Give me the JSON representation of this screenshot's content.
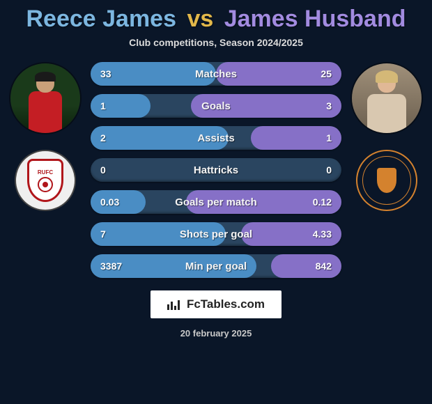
{
  "title": {
    "player1": "Reece James",
    "vs": "vs",
    "player2": "James Husband"
  },
  "subtitle": "Club competitions, Season 2024/2025",
  "colors": {
    "p1_title": "#7cb6e0",
    "vs_title": "#e2b84a",
    "p2_title": "#a28be0",
    "p1_bar": "#4a8dc4",
    "p2_bar": "#8670c7",
    "bar_bg": "#2a4560",
    "page_bg": "#0a1628"
  },
  "stats": [
    {
      "label": "Matches",
      "v1": "33",
      "v2": "25",
      "w1": 50,
      "w2": 50
    },
    {
      "label": "Goals",
      "v1": "1",
      "v2": "3",
      "w1": 24,
      "w2": 60
    },
    {
      "label": "Assists",
      "v1": "2",
      "v2": "1",
      "w1": 55,
      "w2": 36
    },
    {
      "label": "Hattricks",
      "v1": "0",
      "v2": "0",
      "w1": 0,
      "w2": 0
    },
    {
      "label": "Goals per match",
      "v1": "0.03",
      "v2": "0.12",
      "w1": 22,
      "w2": 62
    },
    {
      "label": "Shots per goal",
      "v1": "7",
      "v2": "4.33",
      "w1": 54,
      "w2": 40
    },
    {
      "label": "Min per goal",
      "v1": "3387",
      "v2": "842",
      "w1": 66,
      "w2": 28
    }
  ],
  "brand": "FcTables.com",
  "date": "20 february 2025"
}
